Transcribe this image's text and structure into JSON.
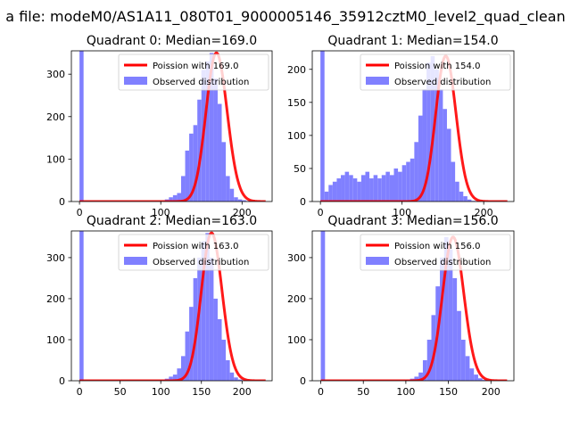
{
  "figure": {
    "suptitle": "a file: modeM0/AS1A11_080T01_9000005146_35912cztM0_level2_quad_clean"
  },
  "chart_data": [
    {
      "type": "bar",
      "title": "Quadrant 0: Median=169.0",
      "xlabel": "",
      "ylabel": "",
      "xlim": [
        -10,
        237
      ],
      "ylim": [
        0,
        355
      ],
      "xticks": [
        0,
        100,
        200
      ],
      "yticks": [
        0,
        100,
        200,
        300
      ],
      "legend_position": "top-right",
      "series": [
        {
          "name": "Poission with 169.0",
          "kind": "line",
          "mean": 169.0,
          "color": "#ff0000"
        },
        {
          "name": "Observed distribution",
          "kind": "histogram",
          "color": "#8080ff",
          "bin_start": 0,
          "bin_width": 5,
          "values": [
            355,
            0,
            0,
            0,
            0,
            0,
            0,
            0,
            0,
            0,
            0,
            0,
            0,
            0,
            0,
            0,
            0,
            0,
            0,
            0,
            0,
            5,
            10,
            15,
            20,
            60,
            120,
            160,
            180,
            240,
            310,
            330,
            350,
            290,
            230,
            140,
            60,
            30,
            10,
            5,
            3,
            1,
            0
          ]
        }
      ]
    },
    {
      "type": "bar",
      "title": "Quadrant 1: Median=154.0",
      "xlabel": "",
      "ylabel": "",
      "xlim": [
        -10,
        237
      ],
      "ylim": [
        0,
        228
      ],
      "xticks": [
        0,
        100,
        200
      ],
      "yticks": [
        0,
        50,
        100,
        150,
        200
      ],
      "legend_position": "top-right",
      "series": [
        {
          "name": "Poission with 154.0",
          "kind": "line",
          "mean": 154.0,
          "color": "#ff0000"
        },
        {
          "name": "Observed distribution",
          "kind": "histogram",
          "color": "#8080ff",
          "bin_start": 0,
          "bin_width": 5,
          "values": [
            228,
            15,
            25,
            30,
            35,
            40,
            45,
            40,
            35,
            30,
            40,
            45,
            35,
            40,
            35,
            40,
            45,
            40,
            50,
            45,
            55,
            60,
            65,
            90,
            130,
            170,
            210,
            220,
            200,
            170,
            140,
            110,
            60,
            30,
            15,
            8,
            3,
            1,
            0,
            0,
            0,
            0,
            0
          ]
        }
      ]
    },
    {
      "type": "bar",
      "title": "Quadrant 2: Median=163.0",
      "xlabel": "",
      "ylabel": "",
      "xlim": [
        -10,
        237
      ],
      "ylim": [
        0,
        365
      ],
      "xticks": [
        0,
        50,
        100,
        150,
        200
      ],
      "yticks": [
        0,
        100,
        200,
        300
      ],
      "legend_position": "top-right",
      "series": [
        {
          "name": "Poission with 163.0",
          "kind": "line",
          "mean": 163.0,
          "color": "#ff0000"
        },
        {
          "name": "Observed distribution",
          "kind": "histogram",
          "color": "#8080ff",
          "bin_start": 0,
          "bin_width": 5,
          "values": [
            365,
            0,
            0,
            0,
            0,
            0,
            0,
            0,
            0,
            0,
            0,
            0,
            0,
            0,
            0,
            0,
            0,
            0,
            0,
            0,
            2,
            5,
            10,
            15,
            30,
            60,
            120,
            180,
            250,
            300,
            340,
            360,
            300,
            200,
            150,
            100,
            50,
            20,
            8,
            3,
            1,
            0,
            0
          ]
        }
      ]
    },
    {
      "type": "bar",
      "title": "Quadrant 3: Median=156.0",
      "xlabel": "",
      "ylabel": "",
      "xlim": [
        -10,
        227
      ],
      "ylim": [
        0,
        365
      ],
      "xticks": [
        0,
        50,
        100,
        150,
        200
      ],
      "yticks": [
        0,
        100,
        200,
        300
      ],
      "legend_position": "top-right",
      "series": [
        {
          "name": "Poission with 156.0",
          "kind": "line",
          "mean": 156.0,
          "color": "#ff0000"
        },
        {
          "name": "Observed distribution",
          "kind": "histogram",
          "color": "#8080ff",
          "bin_start": 0,
          "bin_width": 5,
          "values": [
            365,
            0,
            0,
            0,
            0,
            0,
            0,
            0,
            0,
            0,
            0,
            0,
            0,
            0,
            0,
            0,
            0,
            0,
            0,
            0,
            2,
            5,
            10,
            20,
            50,
            100,
            160,
            230,
            300,
            350,
            320,
            250,
            170,
            100,
            60,
            30,
            15,
            6,
            2,
            1,
            0,
            0,
            0
          ]
        }
      ]
    }
  ]
}
